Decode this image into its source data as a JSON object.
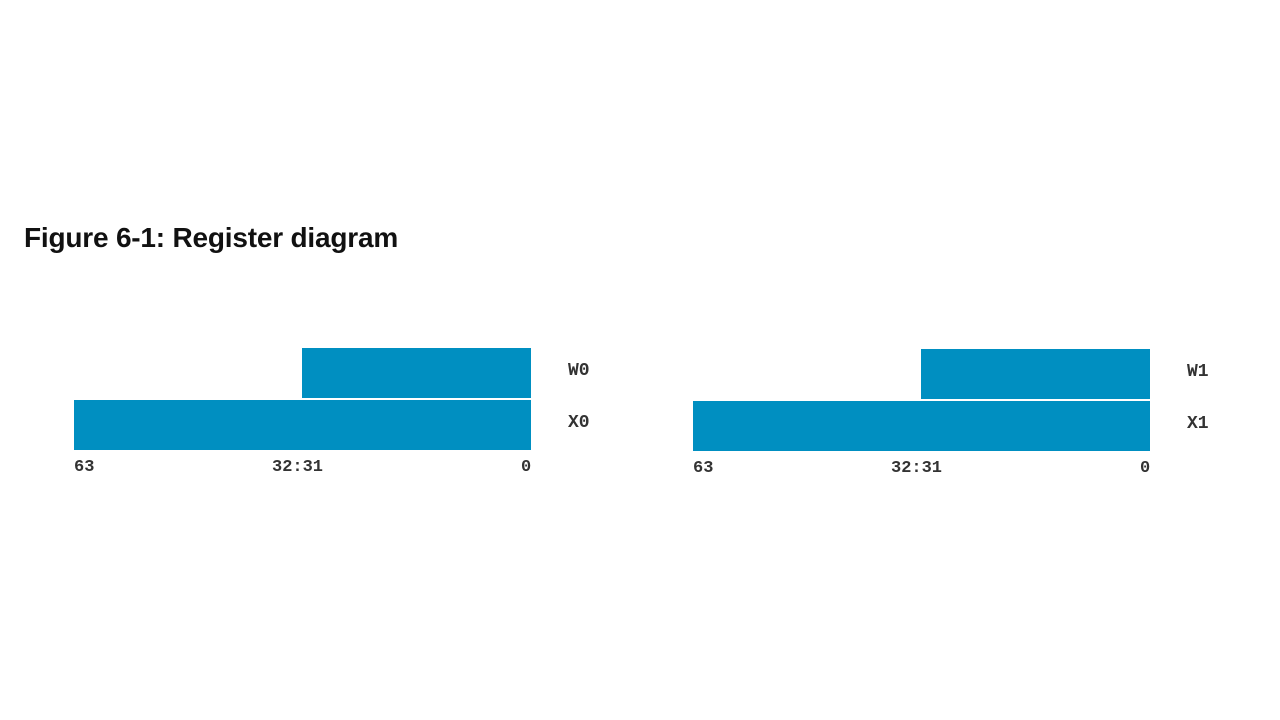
{
  "title": "Figure 6-1: Register diagram",
  "colors": {
    "register_fill": "#008fc1"
  },
  "registers": [
    {
      "w_label": "W0",
      "x_label": "X0",
      "bit_high": "63",
      "bit_mid": "32:31",
      "bit_low": "0"
    },
    {
      "w_label": "W1",
      "x_label": "X1",
      "bit_high": "63",
      "bit_mid": "32:31",
      "bit_low": "0"
    }
  ]
}
